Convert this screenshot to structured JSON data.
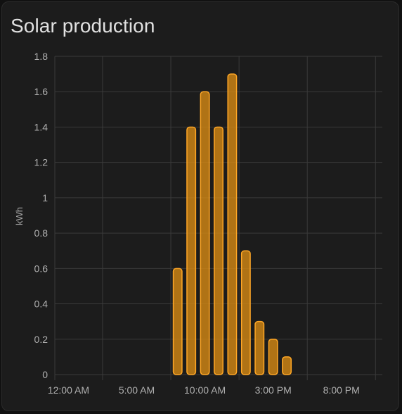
{
  "card": {
    "title": "Solar production"
  },
  "colors": {
    "card_background": "#1c1c1c",
    "title": "#e1e1e1",
    "grid": "#3a3a3a",
    "tick_label": "#b0b0b0",
    "bar_fill": "#d68a14",
    "bar_stroke": "#ffa726"
  },
  "chart_data": {
    "type": "bar",
    "title": "",
    "ylabel": "kWh",
    "xlabel": "",
    "ylim": [
      0,
      1.8
    ],
    "yticks": [
      0,
      0.2,
      0.4,
      0.6,
      0.8,
      1,
      1.2,
      1.4,
      1.6,
      1.8
    ],
    "ytick_labels": [
      "0",
      "0.2",
      "0.4",
      "0.6",
      "0.8",
      "1",
      "1.2",
      "1.4",
      "1.6",
      "1.8"
    ],
    "x_range_hours": [
      -1,
      23
    ],
    "xticks_hours": [
      0,
      5,
      10,
      15,
      20
    ],
    "xtick_labels": [
      "12:00 AM",
      "5:00 AM",
      "10:00 AM",
      "3:00 PM",
      "8:00 PM"
    ],
    "grid": true,
    "series": [
      {
        "x_hours": [
          8,
          9,
          10,
          11,
          12,
          13,
          14,
          15,
          16
        ],
        "values": [
          0.6,
          1.4,
          1.6,
          1.4,
          1.7,
          0.7,
          0.3,
          0.2,
          0.1
        ]
      }
    ]
  }
}
